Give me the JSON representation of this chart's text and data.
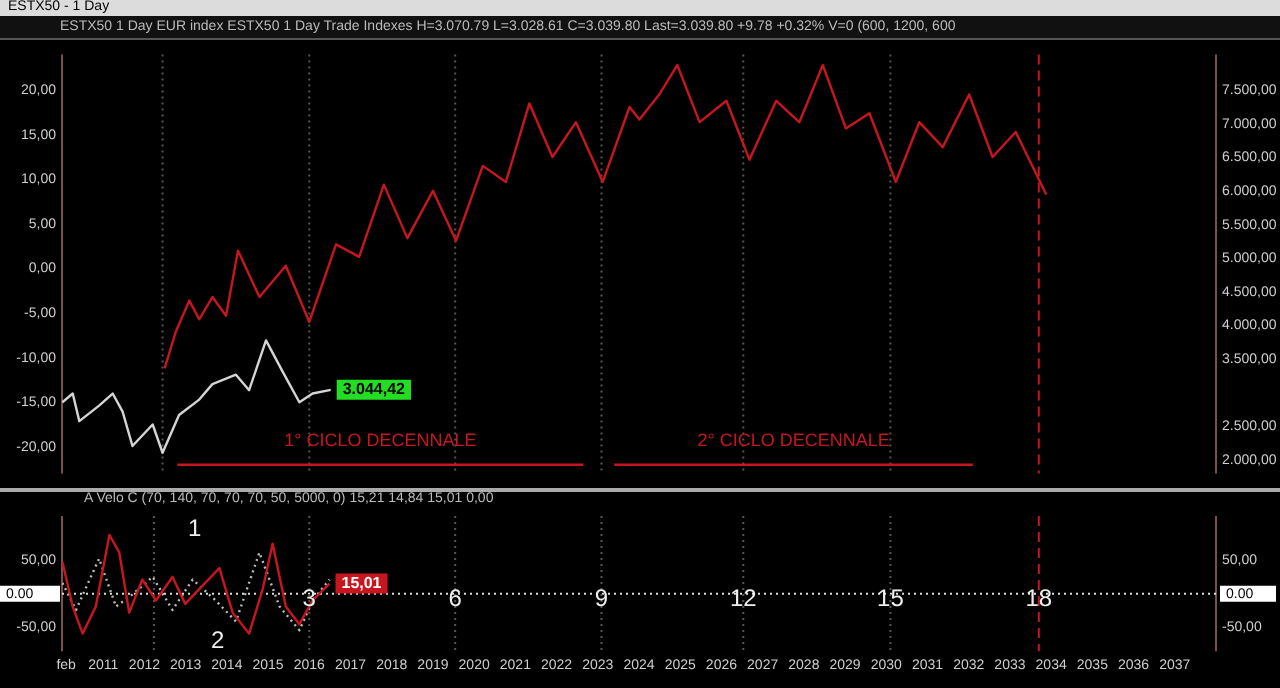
{
  "chart_data": [
    {
      "type": "line",
      "title": "ESTX50 - 1 Day",
      "subtitle": "ESTX50   1 Day   EUR index ESTX50   1 Day   Trade   Indexes   H=3.070.79  L=3.028.61  C=3.039.80  Last=3.039.80  +9.78  +0.32%  V=0   (600, 1200, 600",
      "xlim": [
        2010,
        2038
      ],
      "ylim": [
        -23,
        24
      ],
      "yticks": [
        {
          "value": -20,
          "label": "-20,00"
        },
        {
          "value": -15,
          "label": "-15,00"
        },
        {
          "value": -10,
          "label": "-10,00"
        },
        {
          "value": -5,
          "label": "-5,00"
        },
        {
          "value": 0,
          "label": "0,00"
        },
        {
          "value": 5,
          "label": "5,00"
        },
        {
          "value": 10,
          "label": "10,00"
        },
        {
          "value": 15,
          "label": "15,00"
        },
        {
          "value": 20,
          "label": "20,00"
        }
      ],
      "y2lim": [
        1800,
        8030
      ],
      "y2ticks": [
        {
          "value": 2000,
          "label": "2.000,00"
        },
        {
          "value": 2500,
          "label": "2.500,00"
        },
        {
          "value": 3500,
          "label": "3.500,00"
        },
        {
          "value": 4000,
          "label": "4.000,00"
        },
        {
          "value": 4500,
          "label": "4.500,00"
        },
        {
          "value": 5000,
          "label": "5.000,00"
        },
        {
          "value": 5500,
          "label": "5.500,00"
        },
        {
          "value": 6000,
          "label": "6.000,00"
        },
        {
          "value": 6500,
          "label": "6.500,00"
        },
        {
          "value": 7000,
          "label": "7.000,00"
        },
        {
          "value": 7500,
          "label": "7.500,00"
        }
      ],
      "tick_labels": "y",
      "grid": false,
      "legend": false,
      "marker": "none",
      "series": [
        {
          "color": "#c8161e",
          "x": [
            2012.49,
            2012.76,
            2013.09,
            2013.33,
            2013.65,
            2013.98,
            2014.27,
            2014.79,
            2015.43,
            2016.0,
            2016.65,
            2017.21,
            2017.81,
            2018.38,
            2019.0,
            2019.56,
            2020.21,
            2020.77,
            2021.34,
            2021.9,
            2022.47,
            2023.12,
            2023.77,
            2024.01,
            2024.49,
            2024.93,
            2025.47,
            2026.12,
            2026.68,
            2027.33,
            2027.89,
            2028.46,
            2029.02,
            2029.59,
            2030.23,
            2030.8,
            2031.37,
            2032.01,
            2032.58,
            2033.14,
            2033.88
          ],
          "values": [
            -11.2,
            -7.1,
            -3.6,
            -5.7,
            -3.2,
            -5.3,
            2.0,
            -3.2,
            0.3,
            -6.0,
            2.7,
            1.3,
            9.4,
            3.4,
            8.7,
            3.1,
            11.5,
            9.7,
            18.5,
            12.5,
            16.4,
            9.7,
            18.1,
            16.7,
            19.5,
            22.8,
            16.4,
            18.8,
            12.2,
            18.8,
            16.4,
            22.8,
            15.7,
            17.4,
            9.7,
            16.4,
            13.6,
            19.5,
            12.5,
            15.3,
            8.3
          ]
        },
        {
          "color": "#d4d4d4",
          "axis": "y2",
          "x": [
            2010.01,
            2010.26,
            2010.42,
            2010.9,
            2011.23,
            2011.47,
            2011.71,
            2012.2,
            2012.44,
            2012.84,
            2013.33,
            2013.65,
            2014.22,
            2014.54,
            2014.95,
            2015.35,
            2015.76,
            2016.08,
            2016.52
          ],
          "values": [
            2860,
            2990,
            2580,
            2810,
            2990,
            2720,
            2210,
            2530,
            2110,
            2670,
            2900,
            3130,
            3270,
            3040,
            3780,
            3320,
            2860,
            2990,
            3044.42
          ],
          "value_labels": [
            null,
            null,
            null,
            null,
            null,
            null,
            null,
            null,
            null,
            null,
            null,
            null,
            null,
            null,
            null,
            null,
            null,
            null,
            "3.044,42"
          ]
        },
        {
          "color": "#c8161e",
          "x": [
            2012.8,
            2022.65
          ],
          "values": [
            -22,
            -22
          ]
        },
        {
          "color": "#c8161e",
          "x": [
            2023.4,
            2032.1
          ],
          "values": [
            -22,
            -22
          ]
        }
      ],
      "annotations": [
        "1° CICLO DECENNALE",
        "2° CICLO DECENNALE"
      ],
      "ref_lines": [
        {
          "axis": "x",
          "value": 2012.44,
          "color": "#555555",
          "line_style": "dotted"
        },
        {
          "axis": "x",
          "value": 2016.0,
          "color": "#555555",
          "line_style": "dotted"
        },
        {
          "axis": "x",
          "value": 2019.54,
          "color": "#555555",
          "line_style": "dotted"
        },
        {
          "axis": "x",
          "value": 2023.09,
          "color": "#555555",
          "line_style": "dotted"
        },
        {
          "axis": "x",
          "value": 2026.53,
          "color": "#555555",
          "line_style": "dotted"
        },
        {
          "axis": "x",
          "value": 2030.1,
          "color": "#555555",
          "line_style": "dotted"
        },
        {
          "axis": "x",
          "value": 2033.7,
          "color": "#c8161e",
          "line_style": "dashed"
        }
      ]
    },
    {
      "type": "line",
      "title": "A Velo C   (70,  140,  70,  70,  70,  50,  5000,  0)  15,21  14,84  15,01  0,00",
      "xlim": [
        2010,
        2038
      ],
      "ylim": [
        -85,
        115
      ],
      "yticks": [
        {
          "value": -50,
          "label": "-50,00"
        },
        {
          "value": 50,
          "label": "50,00"
        }
      ],
      "y2lim": [
        -85,
        115
      ],
      "y2ticks": [
        {
          "value": -50,
          "label": "-50,00"
        },
        {
          "value": 50,
          "label": "50,00"
        }
      ],
      "xticks": [
        {
          "value": 2010.1,
          "label": "feb"
        },
        2011,
        2012,
        2013,
        2014,
        2015,
        2016,
        2017,
        2018,
        2019,
        2020,
        2021,
        2022,
        2023,
        2024,
        2025,
        2026,
        2027,
        2028,
        2029,
        2030,
        2031,
        2032,
        2033,
        2034,
        2035,
        2036,
        2037
      ],
      "grid": false,
      "legend": false,
      "marker": "none",
      "series": [
        {
          "color": "#c8161e",
          "x": [
            2010.01,
            2010.26,
            2010.5,
            2010.82,
            2011.15,
            2011.39,
            2011.63,
            2011.95,
            2012.28,
            2012.68,
            2012.99,
            2013.41,
            2013.82,
            2014.14,
            2014.54,
            2014.87,
            2015.11,
            2015.43,
            2015.76,
            2016.08,
            2016.49
          ],
          "values": [
            47,
            -19,
            -59,
            -19,
            87,
            61,
            -28,
            21,
            -10,
            25,
            -15,
            12,
            38,
            -28,
            -59,
            7,
            74,
            -19,
            -45,
            -10,
            15.01
          ],
          "value_labels": [
            null,
            null,
            null,
            null,
            null,
            null,
            null,
            null,
            null,
            null,
            null,
            null,
            null,
            null,
            null,
            null,
            null,
            null,
            null,
            null,
            "15,01"
          ]
        },
        {
          "color": "#bbbbbb",
          "line_style": "dotted",
          "x": [
            2010.01,
            2010.34,
            2010.9,
            2011.31,
            2011.71,
            2012.2,
            2012.68,
            2013.17,
            2013.73,
            2014.22,
            2014.79,
            2015.28,
            2015.76,
            2016.08,
            2016.49
          ],
          "values": [
            16,
            -24,
            52,
            -19,
            -1,
            25,
            -24,
            21,
            -10,
            -41,
            61,
            -19,
            -54,
            -10,
            21
          ]
        }
      ],
      "annotations": [
        "1",
        "2",
        {
          "text": "3",
          "x": 2016.0
        },
        {
          "text": "6",
          "x": 2019.54
        },
        {
          "text": "9",
          "x": 2023.09
        },
        {
          "text": "12",
          "x": 2026.53
        },
        {
          "text": "15",
          "x": 2030.1
        },
        {
          "text": "18",
          "x": 2033.7
        }
      ],
      "ref_lines": [
        {
          "axis": "y",
          "value": 0,
          "label": "0.00",
          "color": "#dddddd",
          "line_style": "dotted"
        },
        {
          "axis": "x",
          "value": 2012.23,
          "color": "#555555",
          "line_style": "dotted"
        },
        {
          "axis": "x",
          "value": 2016.0,
          "color": "#555555",
          "line_style": "dotted"
        },
        {
          "axis": "x",
          "value": 2019.54,
          "color": "#555555",
          "line_style": "dotted"
        },
        {
          "axis": "x",
          "value": 2023.09,
          "color": "#555555",
          "line_style": "dotted"
        },
        {
          "axis": "x",
          "value": 2026.53,
          "color": "#555555",
          "line_style": "dotted"
        },
        {
          "axis": "x",
          "value": 2030.1,
          "color": "#555555",
          "line_style": "dotted"
        },
        {
          "axis": "x",
          "value": 2033.7,
          "color": "#c8161e",
          "line_style": "dashed"
        }
      ]
    }
  ]
}
